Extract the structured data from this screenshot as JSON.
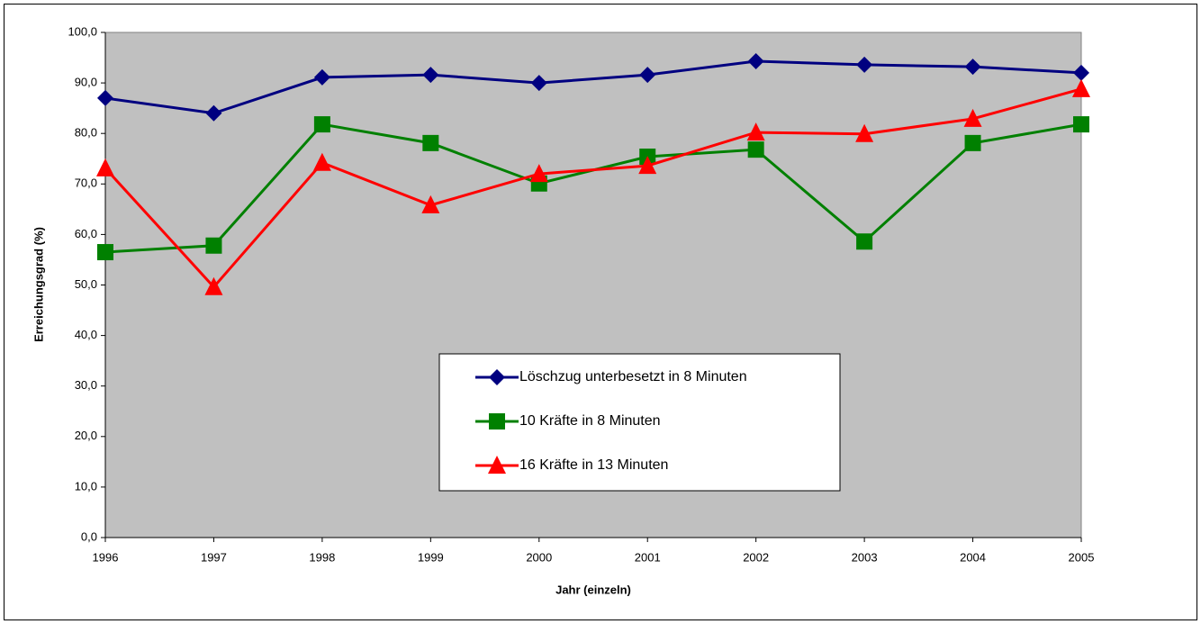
{
  "chart_data": {
    "type": "line",
    "xlabel": "Jahr (einzeln)",
    "ylabel": "Erreichungsgrad (%)",
    "x": [
      1996,
      1997,
      1998,
      1999,
      2000,
      2001,
      2002,
      2003,
      2004,
      2005
    ],
    "xlim": [
      1996,
      2005
    ],
    "xticks": [
      1996,
      1997,
      1998,
      1999,
      2000,
      2001,
      2002,
      2003,
      2004,
      2005
    ],
    "ylim": [
      0,
      100
    ],
    "yticks": [
      {
        "value": 0,
        "label": "0,0"
      },
      {
        "value": 10,
        "label": "10,0"
      },
      {
        "value": 20,
        "label": "20,0"
      },
      {
        "value": 30,
        "label": "30,0"
      },
      {
        "value": 40,
        "label": "40,0"
      },
      {
        "value": 50,
        "label": "50,0"
      },
      {
        "value": 60,
        "label": "60,0"
      },
      {
        "value": 70,
        "label": "70,0"
      },
      {
        "value": 80,
        "label": "80,0"
      },
      {
        "value": 90,
        "label": "90,0"
      },
      {
        "value": 100,
        "label": "100,0"
      }
    ],
    "grid": false,
    "series": [
      {
        "name": "Löschzug unterbesetzt in 8 Minuten",
        "color": "#000080",
        "marker": "diamond",
        "values": [
          87.0,
          84.0,
          91.1,
          91.6,
          90.0,
          91.6,
          94.3,
          93.6,
          93.2,
          92.0
        ]
      },
      {
        "name": "10 Kräfte in 8 Minuten",
        "color": "#008000",
        "marker": "square",
        "values": [
          56.5,
          57.8,
          81.8,
          78.1,
          70.1,
          75.4,
          76.8,
          58.6,
          78.1,
          81.8
        ]
      },
      {
        "name": "16 Kräfte in 13 Minuten",
        "color": "#ff0000",
        "marker": "triangle",
        "values": [
          73.1,
          49.6,
          74.2,
          65.8,
          72.0,
          73.6,
          80.2,
          79.9,
          82.9,
          88.8
        ]
      }
    ]
  }
}
